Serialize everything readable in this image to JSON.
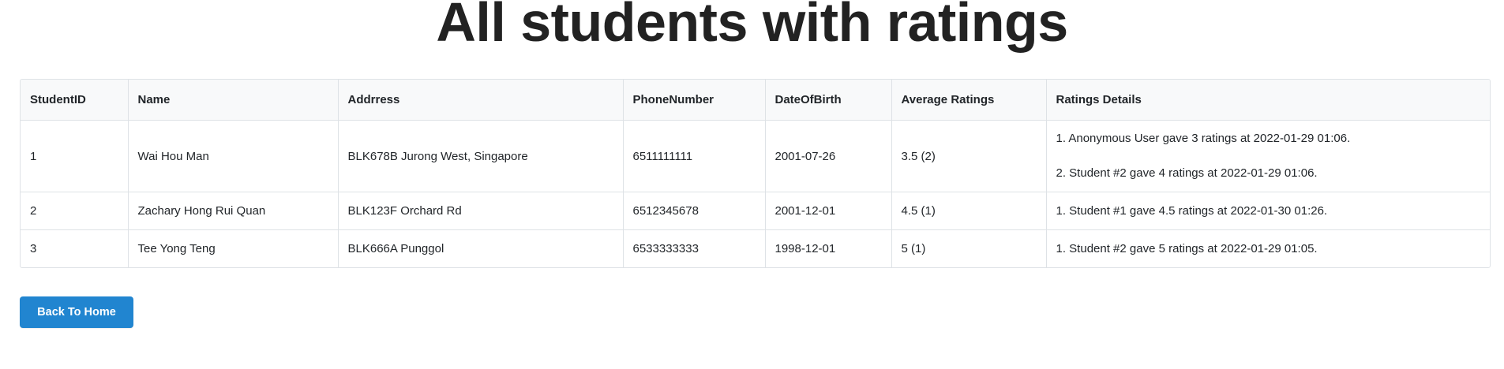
{
  "page": {
    "title": "All students with ratings"
  },
  "table": {
    "headers": [
      "StudentID",
      "Name",
      "Addrress",
      "PhoneNumber",
      "DateOfBirth",
      "Average Ratings",
      "Ratings Details"
    ],
    "rows": [
      {
        "student_id": "1",
        "name": "Wai Hou Man",
        "address": "BLK678B Jurong West, Singapore",
        "phone": "6511111111",
        "dob": "2001-07-26",
        "avg_rating": "3.5 (2)",
        "details": [
          "1. Anonymous User gave 3 ratings at 2022-01-29 01:06.",
          "2. Student #2 gave 4 ratings at 2022-01-29 01:06."
        ]
      },
      {
        "student_id": "2",
        "name": "Zachary Hong Rui Quan",
        "address": "BLK123F Orchard Rd",
        "phone": "6512345678",
        "dob": "2001-12-01",
        "avg_rating": "4.5 (1)",
        "details": [
          "1. Student #1 gave 4.5 ratings at 2022-01-30 01:26."
        ]
      },
      {
        "student_id": "3",
        "name": "Tee Yong Teng",
        "address": "BLK666A Punggol",
        "phone": "6533333333",
        "dob": "1998-12-01",
        "avg_rating": "5 (1)",
        "details": [
          "1. Student #2 gave 5 ratings at 2022-01-29 01:05."
        ]
      }
    ]
  },
  "actions": {
    "back_label": "Back To Home"
  },
  "colors": {
    "primary_button": "#2185d0",
    "header_background": "#f8f9fa",
    "border": "#dee2e6"
  }
}
